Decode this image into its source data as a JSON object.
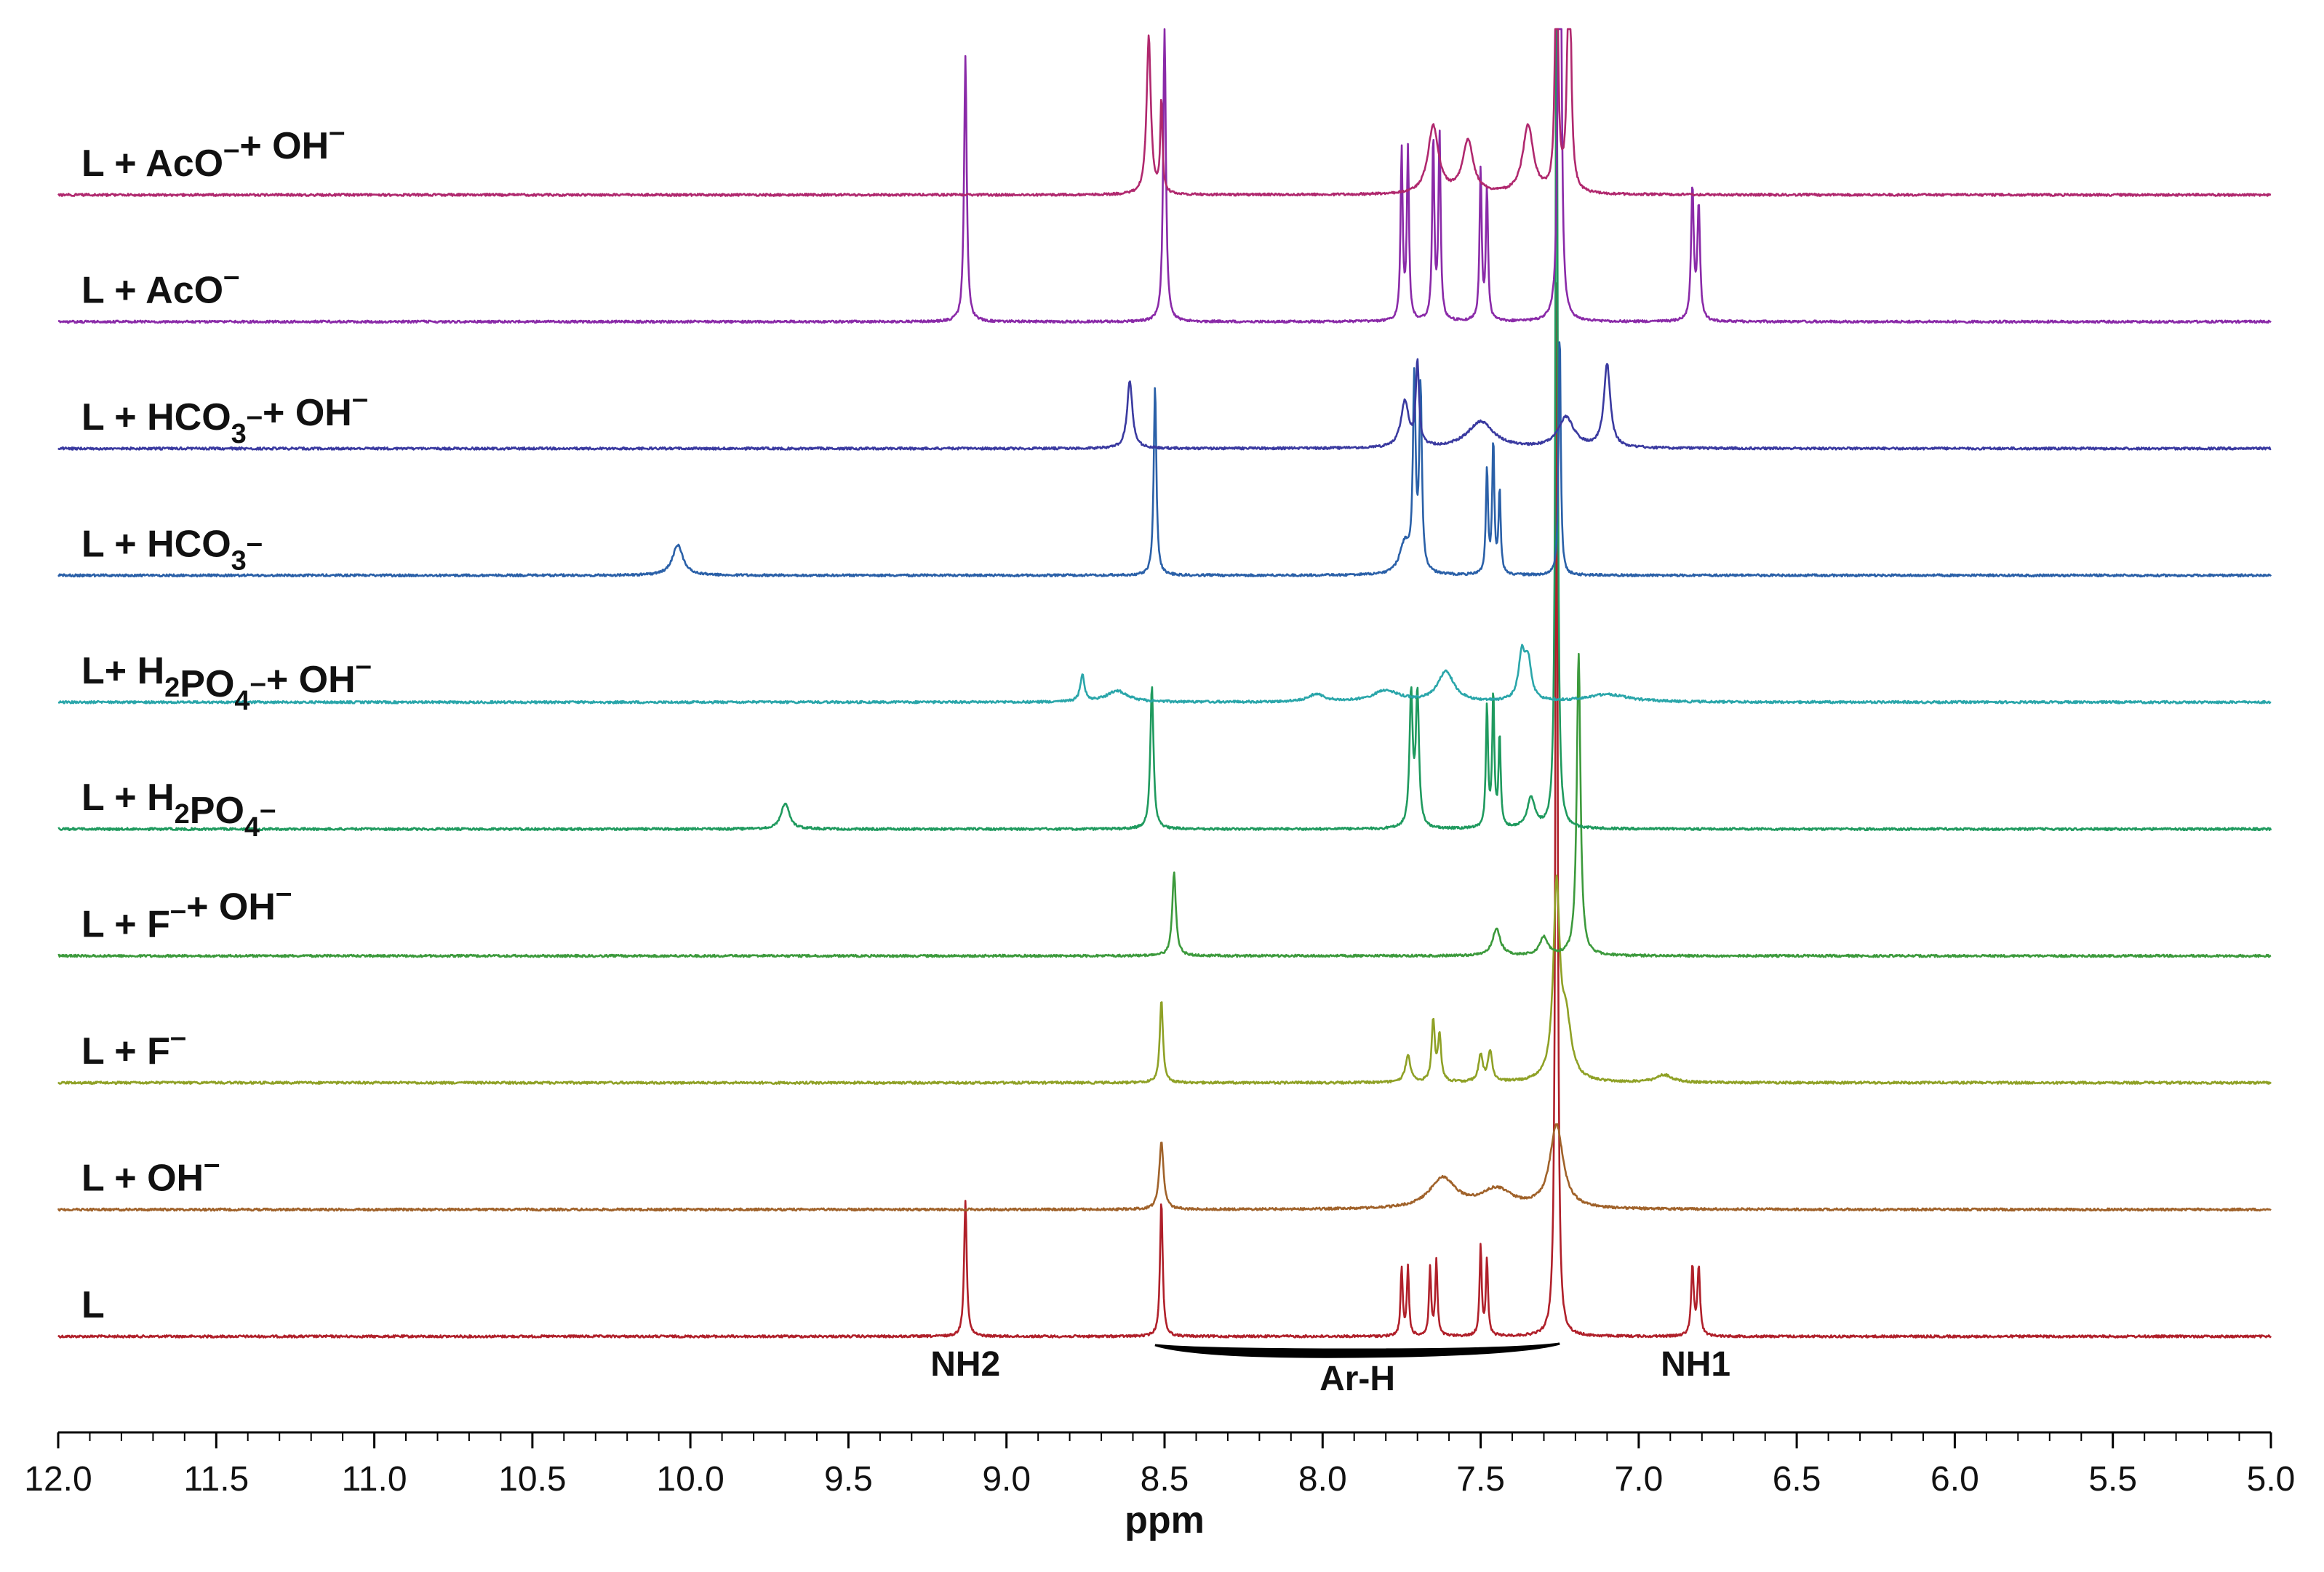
{
  "chart_data": {
    "type": "line",
    "title": "",
    "xlabel": "ppm",
    "ylabel": "",
    "xlim": [
      12.0,
      5.0
    ],
    "x_reversed": true,
    "x_ticks": [
      "12.0",
      "11.5",
      "11.0",
      "10.5",
      "10.0",
      "9.5",
      "9.0",
      "8.5",
      "8.0",
      "7.5",
      "7.0",
      "6.5",
      "6.0",
      "5.5",
      "5.0"
    ],
    "grid": false,
    "legend": "inline labels at left of each trace",
    "series": [
      {
        "name": "L",
        "label_parts": [
          {
            "t": "L"
          }
        ],
        "color": "#b0202a",
        "peaks": [
          {
            "ppm": 9.13,
            "intensity": 0.36,
            "width": 0.005
          },
          {
            "ppm": 8.51,
            "intensity": 0.36,
            "width": 0.005
          },
          {
            "ppm": 7.75,
            "intensity": 0.18,
            "width": 0.004
          },
          {
            "ppm": 7.73,
            "intensity": 0.18,
            "width": 0.004
          },
          {
            "ppm": 7.66,
            "intensity": 0.18,
            "width": 0.004
          },
          {
            "ppm": 7.64,
            "intensity": 0.2,
            "width": 0.004
          },
          {
            "ppm": 7.5,
            "intensity": 0.24,
            "width": 0.004
          },
          {
            "ppm": 7.48,
            "intensity": 0.2,
            "width": 0.004
          },
          {
            "ppm": 7.26,
            "intensity": 2.8,
            "width": 0.004
          },
          {
            "ppm": 6.83,
            "intensity": 0.18,
            "width": 0.005
          },
          {
            "ppm": 6.81,
            "intensity": 0.18,
            "width": 0.005
          }
        ]
      },
      {
        "name": "L + OH-",
        "label_parts": [
          {
            "t": "L + OH"
          },
          {
            "t": "–",
            "s": "sup"
          }
        ],
        "color": "#a0622a",
        "peaks": [
          {
            "ppm": 8.51,
            "intensity": 0.18,
            "width": 0.008
          },
          {
            "ppm": 7.62,
            "intensity": 0.08,
            "width": 0.05
          },
          {
            "ppm": 7.45,
            "intensity": 0.05,
            "width": 0.06
          },
          {
            "ppm": 7.26,
            "intensity": 0.22,
            "width": 0.025
          }
        ]
      },
      {
        "name": "L + F-",
        "label_parts": [
          {
            "t": "L + F"
          },
          {
            "t": "–",
            "s": "sup"
          }
        ],
        "color": "#8fa126",
        "peaks": [
          {
            "ppm": 8.51,
            "intensity": 0.22,
            "width": 0.006
          },
          {
            "ppm": 7.73,
            "intensity": 0.07,
            "width": 0.01
          },
          {
            "ppm": 7.65,
            "intensity": 0.16,
            "width": 0.006
          },
          {
            "ppm": 7.63,
            "intensity": 0.12,
            "width": 0.006
          },
          {
            "ppm": 7.5,
            "intensity": 0.07,
            "width": 0.008
          },
          {
            "ppm": 7.47,
            "intensity": 0.08,
            "width": 0.008
          },
          {
            "ppm": 7.26,
            "intensity": 0.5,
            "width": 0.012
          },
          {
            "ppm": 7.23,
            "intensity": 0.15,
            "width": 0.02
          },
          {
            "ppm": 6.92,
            "intensity": 0.02,
            "width": 0.03
          }
        ]
      },
      {
        "name": "L + F- + OH-",
        "label_parts": [
          {
            "t": "L + F"
          },
          {
            "t": "–",
            "s": "sup"
          },
          {
            "t": "+ OH"
          },
          {
            "t": "–",
            "s": "sup"
          }
        ],
        "color": "#3c9a3c",
        "peaks": [
          {
            "ppm": 8.47,
            "intensity": 0.22,
            "width": 0.007
          },
          {
            "ppm": 7.45,
            "intensity": 0.07,
            "width": 0.015
          },
          {
            "ppm": 7.3,
            "intensity": 0.05,
            "width": 0.015
          },
          {
            "ppm": 7.19,
            "intensity": 0.8,
            "width": 0.007
          }
        ]
      },
      {
        "name": "L + H2PO4-",
        "label_parts": [
          {
            "t": "L + H"
          },
          {
            "t": "2",
            "s": "sub"
          },
          {
            "t": "PO"
          },
          {
            "t": "4",
            "s": "sub"
          },
          {
            "t": "–",
            "s": "sup"
          }
        ],
        "color": "#1f9a5e",
        "peaks": [
          {
            "ppm": 9.7,
            "intensity": 0.07,
            "width": 0.015
          },
          {
            "ppm": 8.54,
            "intensity": 0.38,
            "width": 0.006
          },
          {
            "ppm": 7.72,
            "intensity": 0.35,
            "width": 0.006
          },
          {
            "ppm": 7.7,
            "intensity": 0.35,
            "width": 0.006
          },
          {
            "ppm": 7.48,
            "intensity": 0.32,
            "width": 0.004
          },
          {
            "ppm": 7.46,
            "intensity": 0.35,
            "width": 0.004
          },
          {
            "ppm": 7.44,
            "intensity": 0.24,
            "width": 0.004
          },
          {
            "ppm": 7.34,
            "intensity": 0.08,
            "width": 0.015
          },
          {
            "ppm": 7.26,
            "intensity": 2.4,
            "width": 0.004
          }
        ]
      },
      {
        "name": "L+ H2PO4- + OH-",
        "label_parts": [
          {
            "t": "L+ H"
          },
          {
            "t": "2",
            "s": "sub"
          },
          {
            "t": "PO"
          },
          {
            "t": "4",
            "s": "sub"
          },
          {
            "t": "–",
            "s": "sup"
          },
          {
            "t": "+ OH"
          },
          {
            "t": "–",
            "s": "sup"
          }
        ],
        "color": "#2aa6aa",
        "peaks": [
          {
            "ppm": 8.76,
            "intensity": 0.07,
            "width": 0.008
          },
          {
            "ppm": 8.65,
            "intensity": 0.03,
            "width": 0.04
          },
          {
            "ppm": 8.02,
            "intensity": 0.02,
            "width": 0.03
          },
          {
            "ppm": 7.8,
            "intensity": 0.03,
            "width": 0.05
          },
          {
            "ppm": 7.61,
            "intensity": 0.08,
            "width": 0.03
          },
          {
            "ppm": 7.37,
            "intensity": 0.12,
            "width": 0.012
          },
          {
            "ppm": 7.35,
            "intensity": 0.1,
            "width": 0.012
          },
          {
            "ppm": 7.1,
            "intensity": 0.02,
            "width": 0.08
          }
        ]
      },
      {
        "name": "L + HCO3-",
        "label_parts": [
          {
            "t": "L + HCO"
          },
          {
            "t": "3",
            "s": "sub"
          },
          {
            "t": "–",
            "s": "sup"
          }
        ],
        "color": "#2a60a8",
        "peaks": [
          {
            "ppm": 10.04,
            "intensity": 0.08,
            "width": 0.02
          },
          {
            "ppm": 8.53,
            "intensity": 0.5,
            "width": 0.005
          },
          {
            "ppm": 7.74,
            "intensity": 0.08,
            "width": 0.02
          },
          {
            "ppm": 7.71,
            "intensity": 0.5,
            "width": 0.005
          },
          {
            "ppm": 7.69,
            "intensity": 0.48,
            "width": 0.005
          },
          {
            "ppm": 7.48,
            "intensity": 0.28,
            "width": 0.004
          },
          {
            "ppm": 7.46,
            "intensity": 0.35,
            "width": 0.004
          },
          {
            "ppm": 7.44,
            "intensity": 0.22,
            "width": 0.004
          },
          {
            "ppm": 7.25,
            "intensity": 0.65,
            "width": 0.004
          }
        ]
      },
      {
        "name": "L + HCO3- + OH-",
        "label_parts": [
          {
            "t": "L + HCO"
          },
          {
            "t": "3",
            "s": "sub"
          },
          {
            "t": "–",
            "s": "sup"
          },
          {
            "t": "+ OH"
          },
          {
            "t": "–",
            "s": "sup"
          }
        ],
        "color": "#3a3aa0",
        "peaks": [
          {
            "ppm": 8.61,
            "intensity": 0.18,
            "width": 0.01
          },
          {
            "ppm": 7.74,
            "intensity": 0.12,
            "width": 0.015
          },
          {
            "ppm": 7.7,
            "intensity": 0.22,
            "width": 0.006
          },
          {
            "ppm": 7.5,
            "intensity": 0.07,
            "width": 0.05
          },
          {
            "ppm": 7.23,
            "intensity": 0.08,
            "width": 0.03
          },
          {
            "ppm": 7.1,
            "intensity": 0.22,
            "width": 0.012
          }
        ]
      },
      {
        "name": "L + AcO-",
        "label_parts": [
          {
            "t": "L + AcO"
          },
          {
            "t": "–",
            "s": "sup"
          }
        ],
        "color": "#8a2aa8",
        "peaks": [
          {
            "ppm": 9.13,
            "intensity": 0.7,
            "width": 0.005
          },
          {
            "ppm": 8.5,
            "intensity": 0.78,
            "width": 0.005
          },
          {
            "ppm": 7.75,
            "intensity": 0.45,
            "width": 0.004
          },
          {
            "ppm": 7.73,
            "intensity": 0.45,
            "width": 0.004
          },
          {
            "ppm": 7.65,
            "intensity": 0.48,
            "width": 0.004
          },
          {
            "ppm": 7.63,
            "intensity": 0.5,
            "width": 0.004
          },
          {
            "ppm": 7.5,
            "intensity": 0.4,
            "width": 0.004
          },
          {
            "ppm": 7.48,
            "intensity": 0.35,
            "width": 0.004
          },
          {
            "ppm": 7.25,
            "intensity": 2.5,
            "width": 0.004
          },
          {
            "ppm": 6.83,
            "intensity": 0.35,
            "width": 0.005
          },
          {
            "ppm": 6.81,
            "intensity": 0.3,
            "width": 0.005
          }
        ]
      },
      {
        "name": "L + AcO- + OH-",
        "label_parts": [
          {
            "t": "L + AcO"
          },
          {
            "t": "–",
            "s": "sup"
          },
          {
            "t": "+ OH"
          },
          {
            "t": "–",
            "s": "sup"
          }
        ],
        "color": "#b0286e",
        "peaks": [
          {
            "ppm": 8.55,
            "intensity": 0.42,
            "width": 0.008
          },
          {
            "ppm": 8.51,
            "intensity": 0.25,
            "width": 0.004
          },
          {
            "ppm": 7.65,
            "intensity": 0.18,
            "width": 0.02
          },
          {
            "ppm": 7.54,
            "intensity": 0.14,
            "width": 0.02
          },
          {
            "ppm": 7.35,
            "intensity": 0.18,
            "width": 0.02
          },
          {
            "ppm": 7.26,
            "intensity": 0.8,
            "width": 0.005
          },
          {
            "ppm": 7.22,
            "intensity": 0.8,
            "width": 0.006
          }
        ]
      }
    ],
    "annotations": [
      {
        "text": "NH2",
        "ppm": 9.13
      },
      {
        "text": "Ar-H",
        "ppm_range": [
          8.53,
          7.25
        ]
      },
      {
        "text": "NH1",
        "ppm": 6.82
      }
    ]
  }
}
